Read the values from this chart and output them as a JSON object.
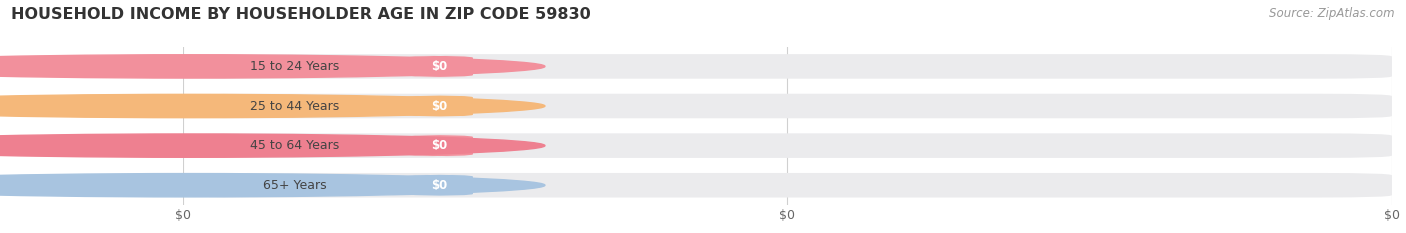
{
  "title": "HOUSEHOLD INCOME BY HOUSEHOLDER AGE IN ZIP CODE 59830",
  "source_text": "Source: ZipAtlas.com",
  "categories": [
    "15 to 24 Years",
    "25 to 44 Years",
    "45 to 64 Years",
    "65+ Years"
  ],
  "values": [
    0,
    0,
    0,
    0
  ],
  "bar_colors": [
    "#f2909c",
    "#f5b87a",
    "#f2909c",
    "#a8c4e0"
  ],
  "circle_colors": [
    "#f2909c",
    "#f5b87a",
    "#ee8090",
    "#a8c4e0"
  ],
  "value_label": "$0",
  "x_tick_labels": [
    "$0",
    "$0",
    "$0"
  ],
  "xlim": [
    0,
    1
  ],
  "title_fontsize": 11.5,
  "source_fontsize": 8.5,
  "tick_fontsize": 9,
  "bar_bg_color": "#ebebed",
  "background_color": "#ffffff",
  "grid_color": "#d0d0d0"
}
